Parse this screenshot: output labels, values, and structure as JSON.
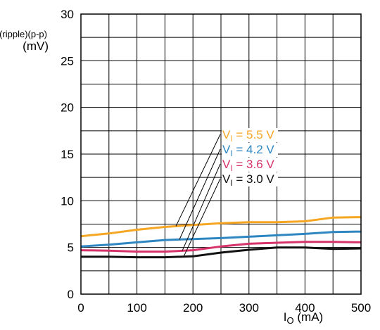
{
  "chart_data": {
    "type": "line",
    "title": "",
    "ylabel": {
      "main": "V",
      "sub": "o(ripple)(p-p)",
      "unit": "(mV)"
    },
    "xlabel": {
      "main": "I",
      "sub": "O",
      "unit": " (mA)"
    },
    "xlim": [
      0,
      500
    ],
    "ylim": [
      0,
      30
    ],
    "x_ticks": [
      0,
      100,
      200,
      300,
      400,
      500
    ],
    "y_ticks": [
      0,
      5,
      10,
      15,
      20,
      25,
      30
    ],
    "x_grid_step": 50,
    "y_grid_step": 2.5,
    "grid": true,
    "series": [
      {
        "name": "V_I = 5.5 V",
        "label": {
          "prefix": "V",
          "sub": "I",
          "suffix": " = 5.5 V"
        },
        "color": "#f5a623",
        "x": [
          0,
          50,
          100,
          150,
          200,
          250,
          300,
          350,
          400,
          450,
          500
        ],
        "y": [
          6.2,
          6.5,
          6.9,
          7.2,
          7.4,
          7.6,
          7.7,
          7.7,
          7.8,
          8.2,
          8.25
        ]
      },
      {
        "name": "V_I = 4.2 V",
        "label": {
          "prefix": "V",
          "sub": "I",
          "suffix": " = 4.2 V"
        },
        "color": "#2e86c1",
        "x": [
          0,
          50,
          100,
          150,
          200,
          250,
          300,
          350,
          400,
          450,
          500
        ],
        "y": [
          5.1,
          5.3,
          5.55,
          5.8,
          5.9,
          6.0,
          6.15,
          6.3,
          6.45,
          6.65,
          6.7
        ]
      },
      {
        "name": "V_I = 3.6 V",
        "label": {
          "prefix": "V",
          "sub": "I",
          "suffix": " = 3.6 V"
        },
        "color": "#d6336c",
        "x": [
          0,
          50,
          100,
          150,
          200,
          250,
          300,
          350,
          400,
          450,
          500
        ],
        "y": [
          4.7,
          4.65,
          4.55,
          4.55,
          4.7,
          5.1,
          5.4,
          5.5,
          5.6,
          5.6,
          5.55
        ]
      },
      {
        "name": "V_I = 3.0 V",
        "label": {
          "prefix": "V",
          "sub": "I",
          "suffix": " = 3.0 V"
        },
        "color": "#111111",
        "x": [
          0,
          50,
          100,
          150,
          200,
          250,
          300,
          350,
          400,
          450,
          500
        ],
        "y": [
          4.0,
          4.0,
          3.95,
          3.95,
          4.05,
          4.45,
          4.75,
          5.0,
          5.0,
          4.85,
          4.9
        ]
      }
    ],
    "legend_placement": "center-right, with leader lines to curves"
  }
}
